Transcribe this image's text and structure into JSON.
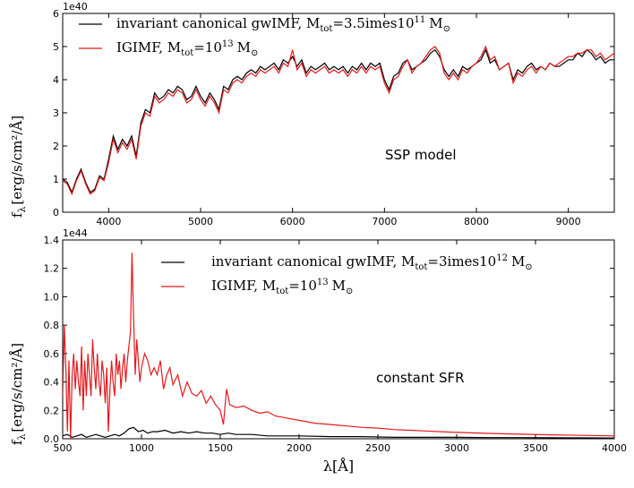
{
  "chart_data": [
    {
      "type": "line",
      "id": "ssp",
      "annotation": "SSP model",
      "ylabel": "f_λ [erg/s/cm²/Å]",
      "ylabel_main": "f",
      "ylabel_sub": "λ",
      "ylabel_rest": "[erg/s/cm²/Å]",
      "exponent": "1e40",
      "xlim": [
        3500,
        9500
      ],
      "ylim": [
        0,
        6
      ],
      "xticks": [
        4000,
        5000,
        6000,
        7000,
        8000,
        9000
      ],
      "yticks": [
        0,
        1,
        2,
        3,
        4,
        5,
        6
      ],
      "legend_position": "top-left",
      "series": [
        {
          "name": "invariant canonical gwIMF, M_tot = 3.5imes10^11 M_⊙",
          "label_main": "invariant canonical gwIMF,  M",
          "label_sub": "tot",
          "label_eq": "=3.5imes10",
          "label_sup": "11",
          "label_unit": "M",
          "label_unit_sub": "⊙",
          "color": "#000000",
          "x": [
            3500,
            3550,
            3600,
            3650,
            3700,
            3750,
            3800,
            3850,
            3900,
            3950,
            4000,
            4050,
            4100,
            4150,
            4200,
            4250,
            4300,
            4350,
            4400,
            4450,
            4500,
            4550,
            4600,
            4650,
            4700,
            4750,
            4800,
            4850,
            4900,
            4950,
            5000,
            5050,
            5100,
            5150,
            5200,
            5250,
            5300,
            5350,
            5400,
            5450,
            5500,
            5550,
            5600,
            5650,
            5700,
            5750,
            5800,
            5850,
            5900,
            5950,
            6000,
            6050,
            6100,
            6150,
            6200,
            6250,
            6300,
            6350,
            6400,
            6450,
            6500,
            6550,
            6600,
            6650,
            6700,
            6750,
            6800,
            6850,
            6900,
            6950,
            7000,
            7050,
            7100,
            7150,
            7200,
            7250,
            7300,
            7350,
            7400,
            7450,
            7500,
            7550,
            7600,
            7650,
            7700,
            7750,
            7800,
            7850,
            7900,
            7950,
            8000,
            8050,
            8100,
            8150,
            8200,
            8250,
            8300,
            8350,
            8400,
            8450,
            8500,
            8550,
            8600,
            8650,
            8700,
            8750,
            8800,
            8850,
            8900,
            8950,
            9000,
            9050,
            9100,
            9150,
            9200,
            9250,
            9300,
            9350,
            9400,
            9450,
            9500
          ],
          "values": [
            1.0,
            0.9,
            0.6,
            1.0,
            1.3,
            0.9,
            0.6,
            0.7,
            1.1,
            1.0,
            1.6,
            2.3,
            1.9,
            2.2,
            2.0,
            2.3,
            1.7,
            2.7,
            3.1,
            3.0,
            3.6,
            3.4,
            3.5,
            3.7,
            3.6,
            3.8,
            3.7,
            3.4,
            3.5,
            3.8,
            3.5,
            3.3,
            3.6,
            3.4,
            3.1,
            3.8,
            3.7,
            4.0,
            4.1,
            4.0,
            4.2,
            4.3,
            4.2,
            4.4,
            4.3,
            4.4,
            4.5,
            4.3,
            4.6,
            4.5,
            4.7,
            4.4,
            4.6,
            4.2,
            4.4,
            4.3,
            4.4,
            4.5,
            4.3,
            4.4,
            4.3,
            4.4,
            4.2,
            4.4,
            4.3,
            4.5,
            4.3,
            4.5,
            4.4,
            4.5,
            4.0,
            3.7,
            4.1,
            4.2,
            4.5,
            4.6,
            4.3,
            4.4,
            4.5,
            4.6,
            4.8,
            4.9,
            4.7,
            4.3,
            4.1,
            4.3,
            4.1,
            4.4,
            4.3,
            4.4,
            4.5,
            4.6,
            4.9,
            4.5,
            4.6,
            4.3,
            4.4,
            4.5,
            4.0,
            4.3,
            4.2,
            4.4,
            4.5,
            4.3,
            4.4,
            4.3,
            4.5,
            4.4,
            4.4,
            4.5,
            4.6,
            4.6,
            4.8,
            4.7,
            4.9,
            4.8,
            4.6,
            4.7,
            4.5,
            4.6,
            4.6
          ]
        },
        {
          "name": "IGIMF, M_tot = 10^13 M_⊙",
          "label_main": "IGIMF,  M",
          "label_sub": "tot",
          "label_eq": "=10",
          "label_sup": "13",
          "label_unit": "M",
          "label_unit_sub": "⊙",
          "color": "#e31a1c",
          "x": [
            3500,
            3550,
            3600,
            3650,
            3700,
            3750,
            3800,
            3850,
            3900,
            3950,
            4000,
            4050,
            4100,
            4150,
            4200,
            4250,
            4300,
            4350,
            4400,
            4450,
            4500,
            4550,
            4600,
            4650,
            4700,
            4750,
            4800,
            4850,
            4900,
            4950,
            5000,
            5050,
            5100,
            5150,
            5200,
            5250,
            5300,
            5350,
            5400,
            5450,
            5500,
            5550,
            5600,
            5650,
            5700,
            5750,
            5800,
            5850,
            5900,
            5950,
            6000,
            6050,
            6100,
            6150,
            6200,
            6250,
            6300,
            6350,
            6400,
            6450,
            6500,
            6550,
            6600,
            6650,
            6700,
            6750,
            6800,
            6850,
            6900,
            6950,
            7000,
            7050,
            7100,
            7150,
            7200,
            7250,
            7300,
            7350,
            7400,
            7450,
            7500,
            7550,
            7600,
            7650,
            7700,
            7750,
            7800,
            7850,
            7900,
            7950,
            8000,
            8050,
            8100,
            8150,
            8200,
            8250,
            8300,
            8350,
            8400,
            8450,
            8500,
            8550,
            8600,
            8650,
            8700,
            8750,
            8800,
            8850,
            8900,
            8950,
            9000,
            9050,
            9100,
            9150,
            9200,
            9250,
            9300,
            9350,
            9400,
            9450,
            9500
          ],
          "values": [
            0.95,
            0.85,
            0.55,
            0.95,
            1.25,
            0.85,
            0.55,
            0.65,
            1.05,
            0.95,
            1.5,
            2.2,
            1.8,
            2.1,
            1.9,
            2.2,
            1.6,
            2.6,
            3.0,
            2.9,
            3.5,
            3.3,
            3.4,
            3.6,
            3.5,
            3.7,
            3.6,
            3.3,
            3.4,
            3.7,
            3.4,
            3.2,
            3.5,
            3.3,
            3.0,
            3.7,
            3.6,
            3.9,
            4.0,
            3.9,
            4.1,
            4.2,
            4.1,
            4.3,
            4.2,
            4.3,
            4.4,
            4.2,
            4.5,
            4.4,
            4.9,
            4.3,
            4.5,
            4.1,
            4.3,
            4.2,
            4.3,
            4.4,
            4.2,
            4.3,
            4.2,
            4.3,
            4.1,
            4.3,
            4.2,
            4.4,
            4.2,
            4.4,
            4.3,
            4.4,
            3.9,
            3.6,
            4.0,
            4.1,
            4.4,
            4.6,
            4.2,
            4.4,
            4.5,
            4.7,
            4.9,
            5.0,
            4.8,
            4.2,
            4.0,
            4.2,
            4.0,
            4.3,
            4.2,
            4.4,
            4.5,
            4.7,
            5.0,
            4.6,
            4.7,
            4.3,
            4.4,
            4.5,
            3.9,
            4.2,
            4.1,
            4.3,
            4.4,
            4.2,
            4.4,
            4.3,
            4.5,
            4.4,
            4.5,
            4.6,
            4.7,
            4.7,
            4.8,
            4.8,
            4.9,
            4.9,
            4.7,
            4.8,
            4.6,
            4.7,
            4.8
          ]
        }
      ]
    },
    {
      "type": "line",
      "id": "sfr",
      "annotation": "constant SFR",
      "xlabel": "λ[Å]",
      "ylabel": "f_λ [erg/s/cm²/Å]",
      "ylabel_main": "f",
      "ylabel_sub": "λ",
      "ylabel_rest": "[erg/s/cm²/Å]",
      "exponent": "1e44",
      "xlim": [
        500,
        4000
      ],
      "ylim": [
        0,
        1.4
      ],
      "xticks": [
        500,
        1000,
        1500,
        2000,
        2500,
        3000,
        3500,
        4000
      ],
      "yticks": [
        0.0,
        0.2,
        0.4,
        0.6,
        0.8,
        1.0,
        1.2,
        1.4
      ],
      "ytick_labels": [
        "0.0",
        "0.2",
        "0.4",
        "0.6",
        "0.8",
        "1.0",
        "1.2",
        "1.4"
      ],
      "legend_position": "top-right",
      "series": [
        {
          "name": "invariant canonical gwIMF, M_tot = 3imes10^12 M_⊙",
          "label_main": "invariant canonical gwIMF,  M",
          "label_sub": "tot",
          "label_eq": "=3imes10",
          "label_sup": "12",
          "label_unit": "M",
          "label_unit_sub": "⊙",
          "color": "#000000",
          "x": [
            500,
            530,
            560,
            590,
            620,
            650,
            680,
            710,
            740,
            770,
            800,
            830,
            860,
            890,
            920,
            950,
            980,
            1010,
            1040,
            1070,
            1100,
            1150,
            1200,
            1250,
            1300,
            1350,
            1400,
            1450,
            1500,
            1550,
            1600,
            1700,
            1800,
            1900,
            2000,
            2200,
            2400,
            2600,
            2800,
            3000,
            3200,
            3400,
            3600,
            3800,
            4000
          ],
          "values": [
            0.02,
            0.03,
            0.01,
            0.02,
            0.03,
            0.01,
            0.02,
            0.03,
            0.02,
            0.01,
            0.02,
            0.03,
            0.02,
            0.04,
            0.07,
            0.08,
            0.05,
            0.06,
            0.04,
            0.05,
            0.05,
            0.06,
            0.04,
            0.05,
            0.04,
            0.05,
            0.04,
            0.04,
            0.03,
            0.04,
            0.03,
            0.03,
            0.02,
            0.02,
            0.02,
            0.015,
            0.015,
            0.01,
            0.01,
            0.01,
            0.008,
            0.008,
            0.007,
            0.006,
            0.005
          ]
        },
        {
          "name": "IGIMF, M_tot = 10^13 M_⊙",
          "label_main": "IGIMF,  M",
          "label_sub": "tot",
          "label_eq": "=10",
          "label_sup": "13",
          "label_unit": "M",
          "label_unit_sub": "⊙",
          "color": "#e31a1c",
          "x": [
            500,
            510,
            520,
            530,
            540,
            550,
            560,
            570,
            580,
            590,
            600,
            610,
            620,
            630,
            640,
            650,
            660,
            670,
            680,
            690,
            700,
            710,
            720,
            730,
            740,
            750,
            760,
            770,
            780,
            790,
            800,
            810,
            820,
            830,
            840,
            850,
            860,
            870,
            880,
            890,
            900,
            910,
            920,
            930,
            940,
            950,
            960,
            970,
            980,
            990,
            1000,
            1020,
            1040,
            1060,
            1080,
            1100,
            1120,
            1140,
            1160,
            1180,
            1200,
            1230,
            1260,
            1290,
            1320,
            1350,
            1380,
            1410,
            1440,
            1470,
            1500,
            1520,
            1540,
            1560,
            1600,
            1650,
            1700,
            1750,
            1800,
            1850,
            1900,
            1950,
            2000,
            2100,
            2200,
            2300,
            2400,
            2500,
            2600,
            2700,
            2800,
            2900,
            3000,
            3200,
            3400,
            3600,
            3800,
            4000
          ],
          "values": [
            0.3,
            0.8,
            0.5,
            0.05,
            0.55,
            0.0,
            0.45,
            0.6,
            0.35,
            0.55,
            0.4,
            0.3,
            0.65,
            0.2,
            0.55,
            0.3,
            0.6,
            0.45,
            0.3,
            0.7,
            0.5,
            0.35,
            0.6,
            0.4,
            0.3,
            0.55,
            0.45,
            0.25,
            0.5,
            0.05,
            0.35,
            0.55,
            0.4,
            0.3,
            0.6,
            0.45,
            0.55,
            0.35,
            0.5,
            0.6,
            0.4,
            0.55,
            0.65,
            0.75,
            1.31,
            0.85,
            0.45,
            0.7,
            0.55,
            0.4,
            0.5,
            0.6,
            0.55,
            0.45,
            0.5,
            0.45,
            0.55,
            0.35,
            0.45,
            0.5,
            0.38,
            0.45,
            0.3,
            0.4,
            0.32,
            0.3,
            0.34,
            0.25,
            0.3,
            0.24,
            0.2,
            0.1,
            0.35,
            0.24,
            0.22,
            0.23,
            0.2,
            0.18,
            0.19,
            0.16,
            0.15,
            0.14,
            0.13,
            0.11,
            0.1,
            0.09,
            0.08,
            0.075,
            0.065,
            0.06,
            0.055,
            0.05,
            0.045,
            0.038,
            0.032,
            0.028,
            0.024,
            0.02
          ]
        }
      ]
    }
  ]
}
